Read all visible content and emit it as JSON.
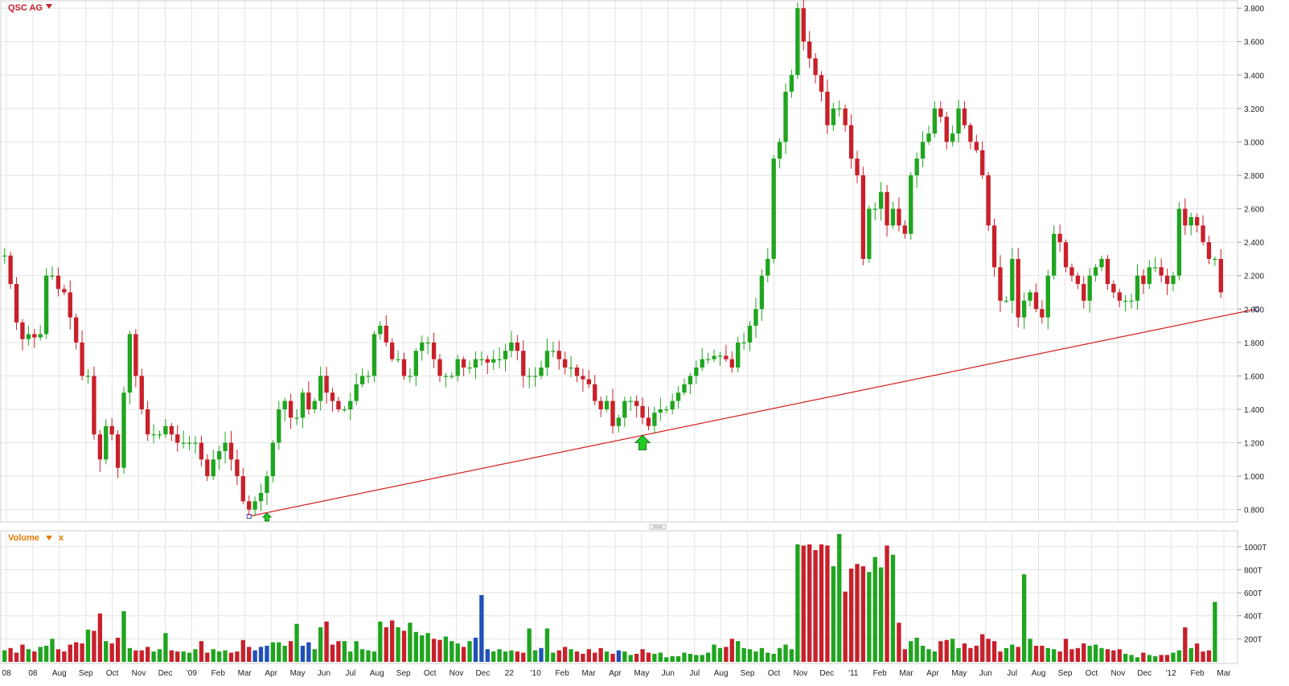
{
  "header": {
    "instrument": "QSC AG",
    "volume_label": "Volume",
    "close_label": "x"
  },
  "colors": {
    "up": "#1fa51f",
    "down": "#c8202a",
    "volume_blue": "#2050b8",
    "trendline": "#d42020",
    "grid": "#e3e3e3",
    "marker_arrow": "#22cc22"
  },
  "chart_data": [
    {
      "type": "candlestick",
      "title": "QSC AG",
      "x_axis_ticks": [
        "08",
        "08",
        "Aug",
        "Sep",
        "Oct",
        "Nov",
        "Dec",
        "'09",
        "Feb",
        "Mar",
        "Apr",
        "May",
        "Jun",
        "Jul",
        "Aug",
        "Sep",
        "Oct",
        "Nov",
        "Dec",
        "22",
        "'10",
        "Feb",
        "Mar",
        "Apr",
        "May",
        "Jun",
        "Jul",
        "Aug",
        "Sep",
        "Oct",
        "Nov",
        "Dec",
        "'11",
        "Feb",
        "Mar",
        "Apr",
        "May",
        "Jun",
        "Jul",
        "Aug",
        "Sep",
        "Oct",
        "Nov",
        "Dec",
        "'12",
        "Feb",
        "Mar"
      ],
      "y_axis_ticks": [
        "0.800",
        "1.000",
        "1.200",
        "1.400",
        "1.600",
        "1.800",
        "2.000",
        "2.200",
        "2.400",
        "2.600",
        "2.800",
        "3.000",
        "3.200",
        "3.400",
        "3.600",
        "3.800"
      ],
      "ylim": [
        0.76,
        3.82
      ],
      "grid": true,
      "close": [
        2.32,
        2.15,
        1.92,
        1.82,
        1.85,
        1.83,
        1.85,
        2.2,
        2.2,
        2.12,
        2.1,
        1.95,
        1.8,
        1.6,
        1.6,
        1.25,
        1.1,
        1.3,
        1.25,
        1.05,
        1.5,
        1.85,
        1.6,
        1.4,
        1.25,
        1.25,
        1.25,
        1.3,
        1.25,
        1.2,
        1.2,
        1.2,
        1.2,
        1.1,
        1.0,
        1.1,
        1.15,
        1.2,
        1.1,
        1.0,
        0.85,
        0.8,
        0.85,
        0.9,
        1.0,
        1.2,
        1.4,
        1.45,
        1.35,
        1.35,
        1.5,
        1.4,
        1.45,
        1.6,
        1.5,
        1.45,
        1.4,
        1.4,
        1.45,
        1.55,
        1.6,
        1.6,
        1.85,
        1.9,
        1.8,
        1.7,
        1.7,
        1.6,
        1.6,
        1.75,
        1.8,
        1.8,
        1.7,
        1.6,
        1.6,
        1.6,
        1.7,
        1.65,
        1.65,
        1.7,
        1.7,
        1.68,
        1.7,
        1.7,
        1.75,
        1.8,
        1.75,
        1.6,
        1.6,
        1.6,
        1.65,
        1.75,
        1.75,
        1.7,
        1.65,
        1.65,
        1.6,
        1.58,
        1.55,
        1.45,
        1.4,
        1.45,
        1.3,
        1.35,
        1.45,
        1.45,
        1.42,
        1.35,
        1.3,
        1.38,
        1.4,
        1.4,
        1.45,
        1.5,
        1.55,
        1.6,
        1.65,
        1.7,
        1.7,
        1.72,
        1.72,
        1.7,
        1.65,
        1.8,
        1.8,
        1.9,
        2.0,
        2.2,
        2.3,
        2.9,
        3.0,
        3.3,
        3.4,
        3.8,
        3.6,
        3.5,
        3.4,
        3.3,
        3.1,
        3.2,
        3.2,
        3.1,
        2.9,
        2.8,
        2.3,
        2.6,
        2.6,
        2.7,
        2.5,
        2.6,
        2.5,
        2.45,
        2.8,
        2.9,
        3.0,
        3.05,
        3.2,
        3.15,
        3.0,
        3.05,
        3.2,
        3.1,
        3.0,
        2.95,
        2.8,
        2.5,
        2.25,
        2.05,
        2.05,
        2.3,
        1.95,
        2.05,
        2.1,
        2.0,
        1.95,
        2.2,
        2.45,
        2.4,
        2.25,
        2.2,
        2.15,
        2.05,
        2.2,
        2.25,
        2.3,
        2.15,
        2.1,
        2.05,
        2.05,
        2.05,
        2.2,
        2.15,
        2.25,
        2.25,
        2.2,
        2.15,
        2.2,
        2.6,
        2.5,
        2.55,
        2.5,
        2.4,
        2.3,
        2.3,
        2.1
      ],
      "markers": [
        {
          "type": "arrow-up",
          "at_index": 107
        },
        {
          "type": "arrow-up",
          "at_index": 44
        }
      ],
      "trendline": {
        "from_index": 41,
        "from_value": 0.76,
        "to_index": 210,
        "to_value": 2.0
      }
    },
    {
      "type": "bar",
      "title": "Volume",
      "y_axis_ticks": [
        "200T",
        "400T",
        "600T",
        "800T",
        "1000T"
      ],
      "ylim": [
        0,
        1110
      ],
      "grid": true,
      "values": [
        100,
        120,
        80,
        150,
        110,
        90,
        130,
        140,
        200,
        110,
        90,
        150,
        170,
        160,
        280,
        270,
        420,
        180,
        160,
        210,
        440,
        120,
        100,
        100,
        130,
        90,
        110,
        250,
        100,
        90,
        90,
        80,
        110,
        180,
        80,
        110,
        90,
        100,
        80,
        90,
        190,
        130,
        100,
        130,
        140,
        170,
        170,
        140,
        180,
        330,
        140,
        170,
        110,
        300,
        350,
        150,
        180,
        180,
        90,
        180,
        110,
        100,
        90,
        350,
        300,
        360,
        300,
        270,
        340,
        260,
        230,
        250,
        200,
        190,
        220,
        180,
        160,
        130,
        180,
        210,
        580,
        110,
        90,
        110,
        90,
        100,
        90,
        80,
        290,
        100,
        120,
        290,
        80,
        100,
        130,
        110,
        90,
        70,
        110,
        80,
        120,
        90,
        70,
        100,
        90,
        60,
        70,
        110,
        80,
        70,
        80,
        40,
        50,
        50,
        80,
        70,
        60,
        60,
        80,
        150,
        120,
        130,
        200,
        180,
        120,
        110,
        90,
        120,
        80,
        70,
        120,
        150,
        110,
        1020,
        1010,
        1020,
        970,
        1020,
        1010,
        830,
        1110,
        610,
        810,
        850,
        830,
        780,
        910,
        820,
        1010,
        930,
        340,
        110,
        180,
        210,
        140,
        110,
        90,
        180,
        190,
        200,
        120,
        160,
        120,
        140,
        240,
        200,
        180,
        90,
        120,
        150,
        130,
        760,
        200,
        140,
        140,
        120,
        110,
        90,
        200,
        110,
        120,
        160,
        140,
        150,
        120,
        110,
        100,
        110,
        70,
        60,
        40,
        80,
        60,
        50,
        60,
        60,
        80,
        100,
        300,
        120,
        160,
        90,
        100,
        520
      ],
      "colors_by_bar": "green when close >= previous close, red when lower, blue on a few low-volume sessions"
    }
  ]
}
